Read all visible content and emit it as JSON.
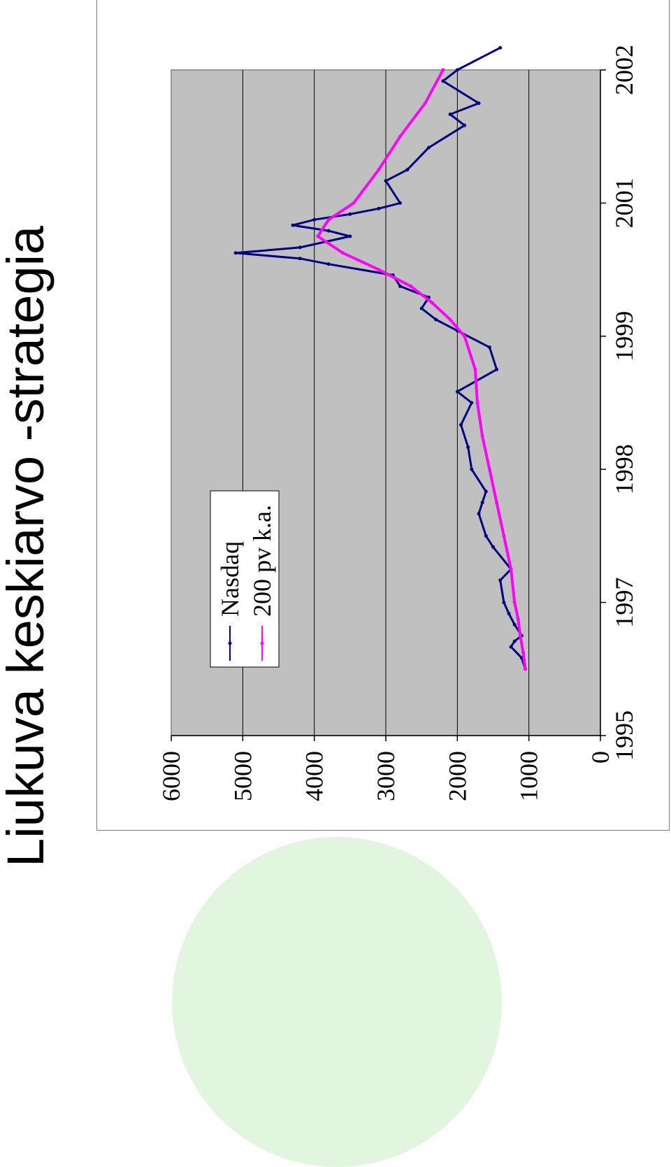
{
  "slide": {
    "title": "Liukuva keskiarvo -strategia"
  },
  "colors": {
    "plot_background": "#c0c0c0",
    "nasdaq": "#000080",
    "moving_average": "#ff00ff",
    "decoration": "#e2f5df"
  },
  "chart_data": {
    "type": "line",
    "title": "",
    "xlabel": "",
    "ylabel": "",
    "orientation": "rotated 90 degrees counter-clockwise",
    "ylim": [
      0,
      6000
    ],
    "y_ticks": [
      "0",
      "1000",
      "2000",
      "3000",
      "4000",
      "5000",
      "6000"
    ],
    "x_ticks": [
      "1995",
      "1997",
      "1998",
      "1999",
      "2001",
      "2002"
    ],
    "grid": true,
    "legend_position": "upper-left of plot area",
    "series": [
      {
        "name": "Nasdaq",
        "color": "#000080",
        "x": [
          "1996-01",
          "1996-03",
          "1996-05",
          "1996-06",
          "1996-07",
          "1996-09",
          "1996-11",
          "1997-01",
          "1997-03",
          "1997-04",
          "1997-06",
          "1997-07",
          "1997-09",
          "1997-10",
          "1997-11",
          "1998-01",
          "1998-03",
          "1998-05",
          "1998-07",
          "1998-08",
          "1998-10",
          "1998-12",
          "1999-02",
          "1999-04",
          "1999-06",
          "1999-08",
          "1999-10",
          "1999-12",
          "2000-02",
          "2000-03",
          "2000-04",
          "2000-05",
          "2000-07",
          "2000-08",
          "2000-09",
          "2000-10",
          "2000-11",
          "2000-12",
          "2001-01",
          "2001-03",
          "2001-04",
          "2001-06",
          "2001-08",
          "2001-09",
          "2001-10",
          "2001-12",
          "2002-01",
          "2002-03"
        ],
        "values": [
          1050,
          1100,
          1250,
          1200,
          1100,
          1200,
          1280,
          1350,
          1400,
          1250,
          1500,
          1600,
          1700,
          1650,
          1600,
          1800,
          1850,
          1950,
          1800,
          2000,
          1450,
          1550,
          2000,
          2300,
          2500,
          2400,
          2800,
          2900,
          3800,
          4200,
          5100,
          4200,
          3500,
          3800,
          4300,
          4000,
          3500,
          3100,
          2800,
          3000,
          2700,
          2400,
          1900,
          2100,
          1700,
          2200,
          2000,
          1400
        ]
      },
      {
        "name": "200 pv k.a.",
        "color": "#ff00ff",
        "x": [
          "1996-01",
          "1996-04",
          "1996-07",
          "1996-10",
          "1997-01",
          "1997-04",
          "1997-07",
          "1997-10",
          "1998-01",
          "1998-04",
          "1998-07",
          "1998-10",
          "1999-01",
          "1999-04",
          "1999-07",
          "1999-10",
          "2000-01",
          "2000-04",
          "2000-07",
          "2000-10",
          "2001-01",
          "2001-04",
          "2001-07",
          "2001-10",
          "2002-01"
        ],
        "values": [
          1050,
          1080,
          1120,
          1150,
          1200,
          1250,
          1350,
          1450,
          1550,
          1650,
          1720,
          1750,
          1900,
          2100,
          2350,
          2650,
          3100,
          3600,
          3950,
          3800,
          3450,
          3100,
          2800,
          2450,
          2200
        ]
      }
    ]
  }
}
